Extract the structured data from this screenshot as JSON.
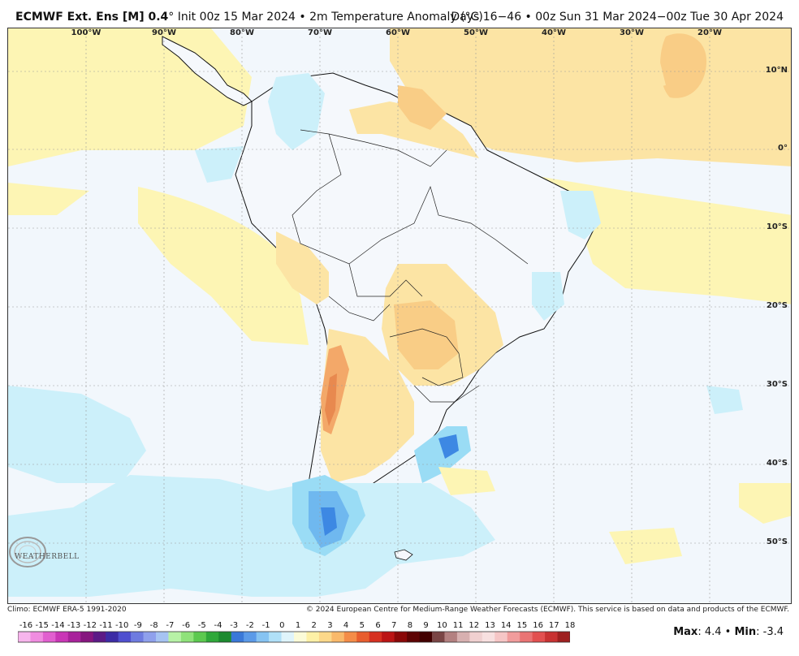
{
  "header": {
    "title_bold": "ECMWF Ext. Ens [M] 0.4",
    "title_rest": "° Init 00z 15 Mar 2024 • 2m Temperature Anomaly (°C)",
    "valid": "Days 16−46 • 00z Sun 31 Mar 2024−00z Tue 30 Apr 2024"
  },
  "map": {
    "lon_labels": [
      "100°W",
      "90°W",
      "80°W",
      "70°W",
      "60°W",
      "50°W",
      "40°W",
      "30°W",
      "20°W"
    ],
    "lat_labels": [
      "10°N",
      "0°",
      "10°S",
      "20°S",
      "30°S",
      "40°S",
      "50°S"
    ],
    "colors": {
      "ocean_neutral": "#f2f7fc",
      "warm_1": "#fdf5b4",
      "warm_2": "#fce4a4",
      "warm_3": "#f9cd86",
      "warm_4": "#f3a869",
      "warm_5": "#e8894f",
      "cool_1": "#ccf0fa",
      "cool_2": "#9adcf5",
      "cool_3": "#6fb8ef",
      "cool_4": "#3d88e3",
      "border": "#111111",
      "grid": "#9a9a9a"
    }
  },
  "logo": {
    "text": "WEATHERBELL"
  },
  "footer": {
    "climo": "Climo: ECMWF ERA-5 1991-2020",
    "copyright": "© 2024 European Centre for Medium-Range Weather Forecasts (ECMWF). This service is based on data and products of the ECMWF.",
    "max_label": "Max",
    "max_value": "4.4",
    "min_label": "Min",
    "min_value": "-3.4"
  },
  "colorbar": {
    "labels": [
      "-16",
      "-15",
      "-14",
      "-13",
      "-12",
      "-11",
      "-10",
      "-9",
      "-8",
      "-7",
      "-6",
      "-5",
      "-4",
      "-3",
      "-2",
      "-1",
      "0",
      "1",
      "2",
      "3",
      "4",
      "5",
      "6",
      "7",
      "8",
      "9",
      "10",
      "11",
      "12",
      "13",
      "14",
      "15",
      "16",
      "17",
      "18"
    ],
    "colors": [
      "#f7b5ec",
      "#f08ce0",
      "#e15fcf",
      "#c936b6",
      "#a8229b",
      "#86167f",
      "#5c1a86",
      "#3c2ba5",
      "#4f4fcf",
      "#6e7be0",
      "#8fa0ec",
      "#a6c3f2",
      "#b7f2a6",
      "#8fe27a",
      "#5cc94f",
      "#2fa83a",
      "#1c8a2f",
      "#3a78d8",
      "#5b9ae8",
      "#86c3f2",
      "#b0e0f8",
      "#dff4fb",
      "#fbfbd8",
      "#fdf0a6",
      "#fcd88a",
      "#f9b96b",
      "#f48c48",
      "#e85d2e",
      "#d63020",
      "#bb1414",
      "#8a0808",
      "#5e0404",
      "#420000",
      "#7a4545",
      "#b38080",
      "#d7b0b0",
      "#f0d0d0",
      "#f8e0e0",
      "#f6c6c6",
      "#f19c9c",
      "#ea7474",
      "#e25050",
      "#c83232",
      "#9e2020"
    ]
  }
}
